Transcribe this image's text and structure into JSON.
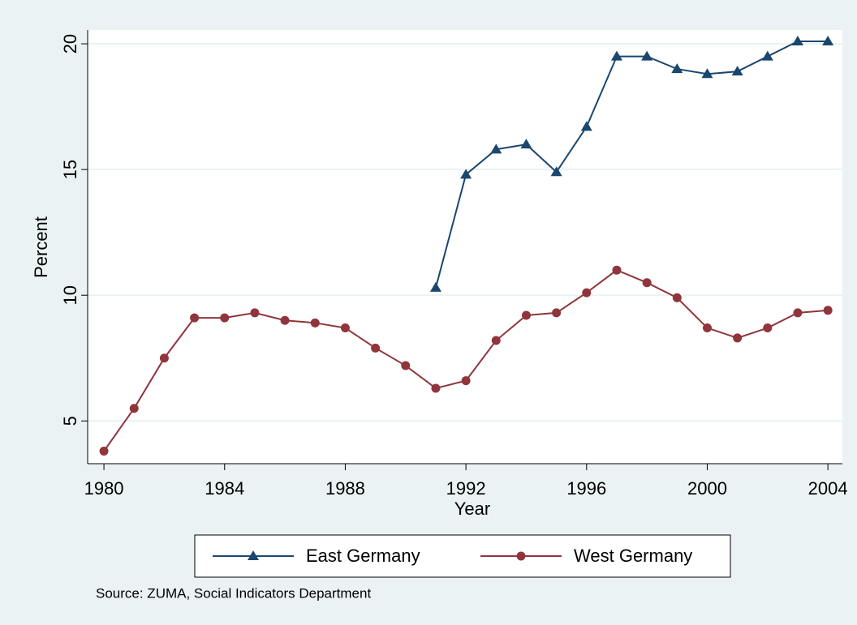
{
  "chart_data": {
    "type": "line",
    "x_label": "Year",
    "y_label": "Percent",
    "source": "Source: ZUMA, Social Indicators Department",
    "x": [
      1980,
      1981,
      1982,
      1983,
      1984,
      1985,
      1986,
      1987,
      1988,
      1989,
      1990,
      1991,
      1992,
      1993,
      1994,
      1995,
      1996,
      1997,
      1998,
      1999,
      2000,
      2001,
      2002,
      2003,
      2004
    ],
    "series": [
      {
        "name": "East Germany",
        "color": "#1a476f",
        "marker": "triangle",
        "values": [
          null,
          null,
          null,
          null,
          null,
          null,
          null,
          null,
          null,
          null,
          null,
          10.3,
          14.8,
          15.8,
          16.0,
          14.9,
          16.7,
          19.5,
          19.5,
          19.0,
          18.8,
          18.9,
          19.5,
          20.1,
          20.1
        ]
      },
      {
        "name": "West Germany",
        "color": "#90353b",
        "marker": "circle",
        "values": [
          3.8,
          5.5,
          7.5,
          9.1,
          9.1,
          9.3,
          9.0,
          8.9,
          8.7,
          7.9,
          7.2,
          6.3,
          6.6,
          8.2,
          9.2,
          9.3,
          10.1,
          11.0,
          10.5,
          9.9,
          8.7,
          8.3,
          8.7,
          9.3,
          9.4
        ]
      }
    ],
    "xlim": [
      1979.46,
      2004.48
    ],
    "xticks": [
      1980,
      1984,
      1988,
      1992,
      1996,
      2000,
      2004
    ],
    "ylim": [
      3.3,
      20.55
    ],
    "yticks": [
      5,
      10,
      15,
      20
    ],
    "grid": true,
    "legend": "bottom"
  }
}
